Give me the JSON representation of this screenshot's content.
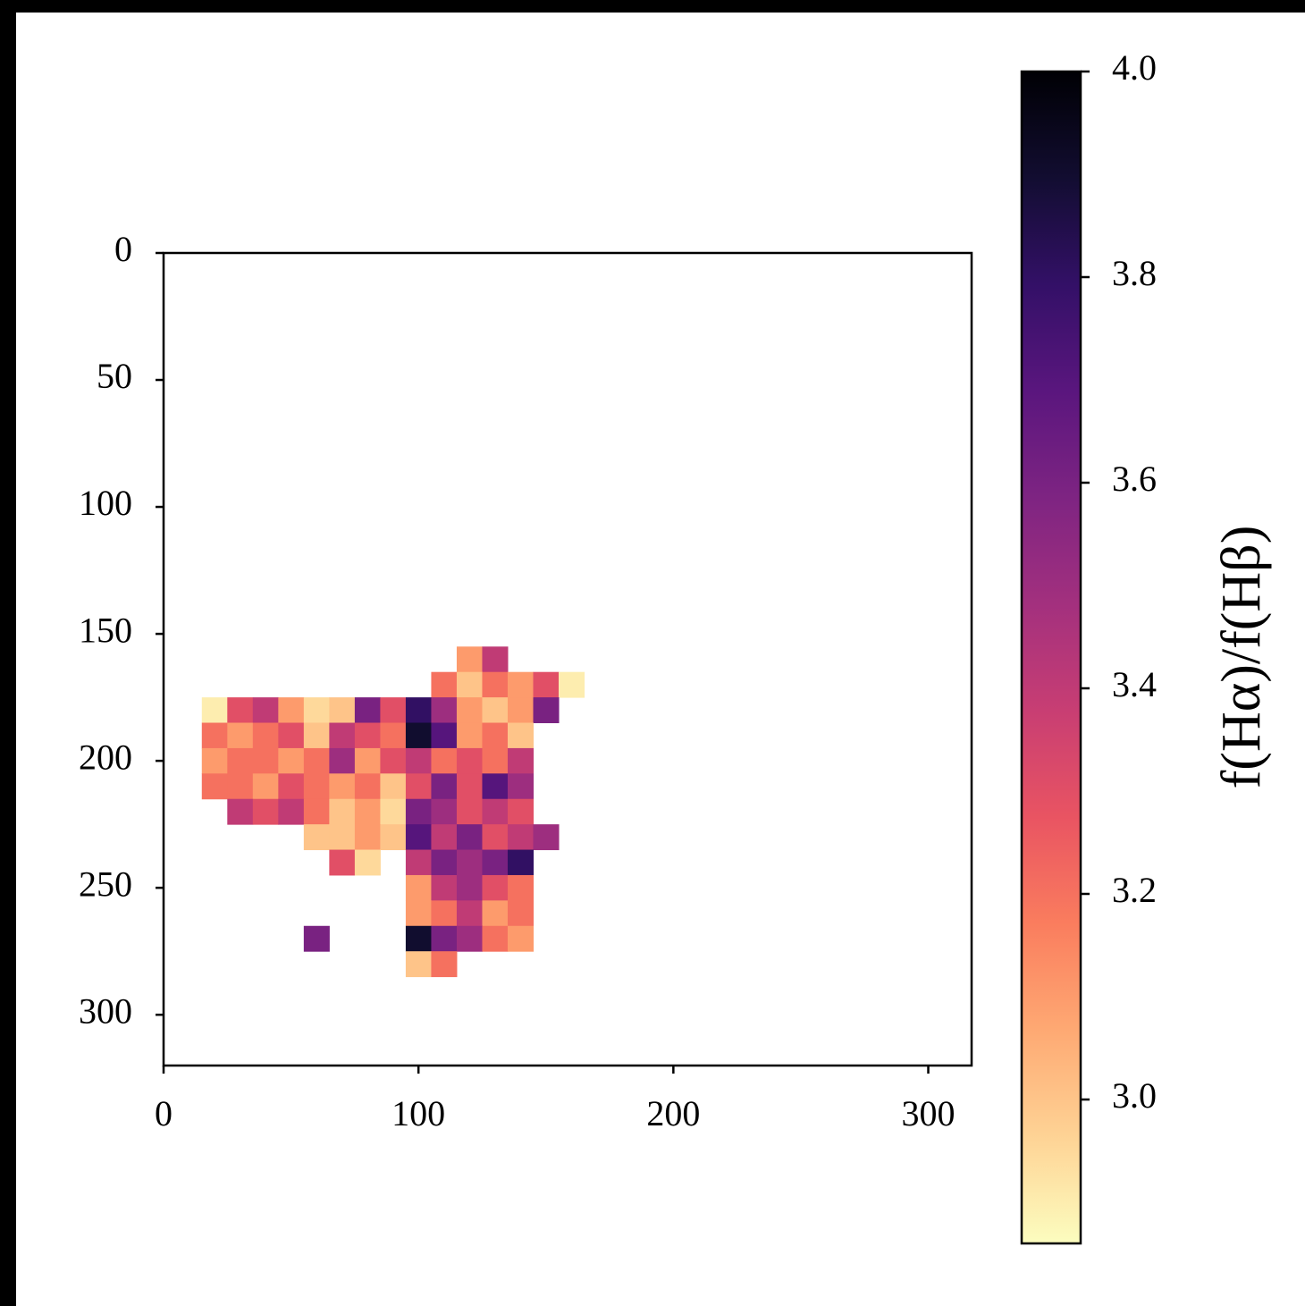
{
  "chart_data": {
    "type": "heatmap",
    "colorbar_label": "f(Hα)/f(Hβ)",
    "x": [
      15,
      25,
      35,
      45,
      55,
      65,
      75,
      85,
      95,
      105,
      115,
      125,
      135,
      145,
      155,
      165
    ],
    "y": [
      155,
      165,
      175,
      185,
      195,
      205,
      215,
      225,
      235,
      245,
      255,
      265,
      275,
      285
    ],
    "z": [
      [
        null,
        null,
        null,
        null,
        null,
        null,
        null,
        null,
        null,
        null,
        3.1,
        3.4,
        null,
        null,
        null
      ],
      [
        null,
        null,
        null,
        null,
        null,
        null,
        null,
        null,
        null,
        3.2,
        3.0,
        3.2,
        3.1,
        3.3,
        2.9
      ],
      [
        2.9,
        3.3,
        3.4,
        3.1,
        2.95,
        3.0,
        3.6,
        3.3,
        3.8,
        3.5,
        3.1,
        3.0,
        3.1,
        3.6,
        null
      ],
      [
        3.2,
        3.1,
        3.2,
        3.3,
        3.0,
        3.4,
        3.3,
        3.2,
        3.9,
        3.7,
        3.1,
        3.2,
        3.0,
        null,
        null
      ],
      [
        3.1,
        3.2,
        3.2,
        3.1,
        3.2,
        3.5,
        3.1,
        3.3,
        3.4,
        3.2,
        3.3,
        3.2,
        3.4,
        null,
        null
      ],
      [
        3.2,
        3.2,
        3.1,
        3.3,
        3.2,
        3.1,
        3.2,
        3.0,
        3.3,
        3.6,
        3.3,
        3.7,
        3.5,
        null,
        null
      ],
      [
        null,
        3.4,
        3.3,
        3.4,
        3.2,
        3.0,
        3.1,
        2.95,
        3.6,
        3.5,
        3.3,
        3.4,
        3.3,
        null,
        null
      ],
      [
        null,
        null,
        null,
        null,
        3.0,
        3.0,
        3.1,
        3.0,
        3.7,
        3.4,
        3.6,
        3.3,
        3.4,
        3.5,
        null
      ],
      [
        null,
        null,
        null,
        null,
        null,
        3.3,
        2.95,
        null,
        3.4,
        3.6,
        3.5,
        3.6,
        3.8,
        null,
        null
      ],
      [
        null,
        null,
        null,
        null,
        null,
        null,
        null,
        null,
        3.1,
        3.4,
        3.5,
        3.3,
        3.2,
        null,
        null
      ],
      [
        null,
        null,
        null,
        null,
        null,
        null,
        null,
        null,
        3.1,
        3.2,
        3.4,
        3.1,
        3.2,
        null,
        null
      ],
      [
        null,
        null,
        null,
        null,
        3.6,
        null,
        null,
        null,
        3.9,
        3.6,
        3.5,
        3.2,
        3.1,
        null,
        null
      ],
      [
        null,
        null,
        null,
        null,
        null,
        null,
        null,
        null,
        3.0,
        3.2,
        null,
        null,
        null,
        null,
        null
      ]
    ],
    "xlim": [
      0,
      317
    ],
    "xticks": [
      0,
      100,
      200,
      300
    ],
    "ylim": [
      320,
      0
    ],
    "yticks": [
      0,
      50,
      100,
      150,
      200,
      250,
      300
    ],
    "clim": [
      2.86,
      4.0
    ],
    "cticks": [
      {
        "value": 3.0,
        "label": "3.0"
      },
      3.2,
      3.4,
      3.6,
      3.8,
      {
        "value": 4.0,
        "label": "4.0"
      }
    ],
    "colormap": [
      "#fcfdbf",
      "#fed395",
      "#fea973",
      "#fa7d5e",
      "#e95462",
      "#c83e73",
      "#a3307e",
      "#7e2482",
      "#5a167e",
      "#331067",
      "#120d31",
      "#000004"
    ]
  }
}
